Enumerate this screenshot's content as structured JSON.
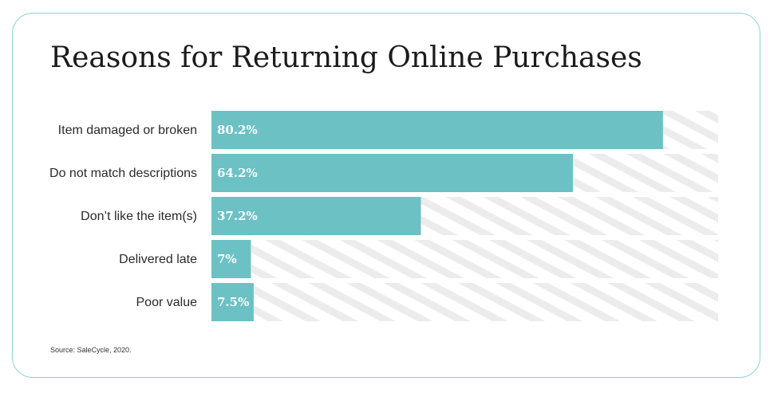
{
  "title": "Reasons for Returning Online Purchases",
  "source": "Source: SaleCycle, 2020.",
  "colors": {
    "bar": "#6bc1c4",
    "track_stripe": "#ececec",
    "border": "#8fd0d3"
  },
  "chart_data": {
    "type": "bar",
    "orientation": "horizontal",
    "title": "Reasons for Returning Online Purchases",
    "categories": [
      "Item damaged or broken",
      "Do not match descriptions",
      "Don’t like the item(s)",
      "Delivered late",
      "Poor value"
    ],
    "values": [
      80.2,
      64.2,
      37.2,
      7,
      7.5
    ],
    "value_labels": [
      "80.2%",
      "64.2%",
      "37.2%",
      "7%",
      "7.5%"
    ],
    "xlim": [
      0,
      90
    ],
    "grid": false,
    "legend": "none"
  }
}
